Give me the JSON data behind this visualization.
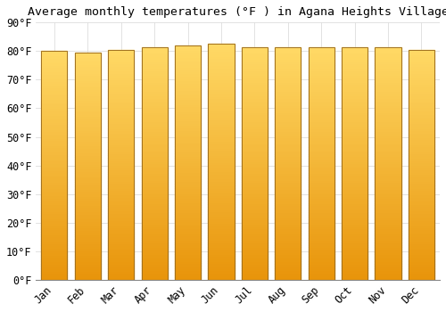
{
  "title": "Average monthly temperatures (°F ) in Agana Heights Village",
  "months": [
    "Jan",
    "Feb",
    "Mar",
    "Apr",
    "May",
    "Jun",
    "Jul",
    "Aug",
    "Sep",
    "Oct",
    "Nov",
    "Dec"
  ],
  "values": [
    80,
    79.5,
    80.5,
    81.5,
    82,
    82.5,
    81.5,
    81.5,
    81.5,
    81.5,
    81.5,
    80.5
  ],
  "bar_color_top": "#FFD966",
  "bar_color_bottom": "#E8940A",
  "bar_edge_color": "#A07020",
  "background_color": "#FFFFFF",
  "grid_color": "#DDDDDD",
  "ylim": [
    0,
    90
  ],
  "yticks": [
    0,
    10,
    20,
    30,
    40,
    50,
    60,
    70,
    80,
    90
  ],
  "title_fontsize": 9.5,
  "tick_fontsize": 8.5,
  "font_family": "monospace",
  "bar_width": 0.78
}
